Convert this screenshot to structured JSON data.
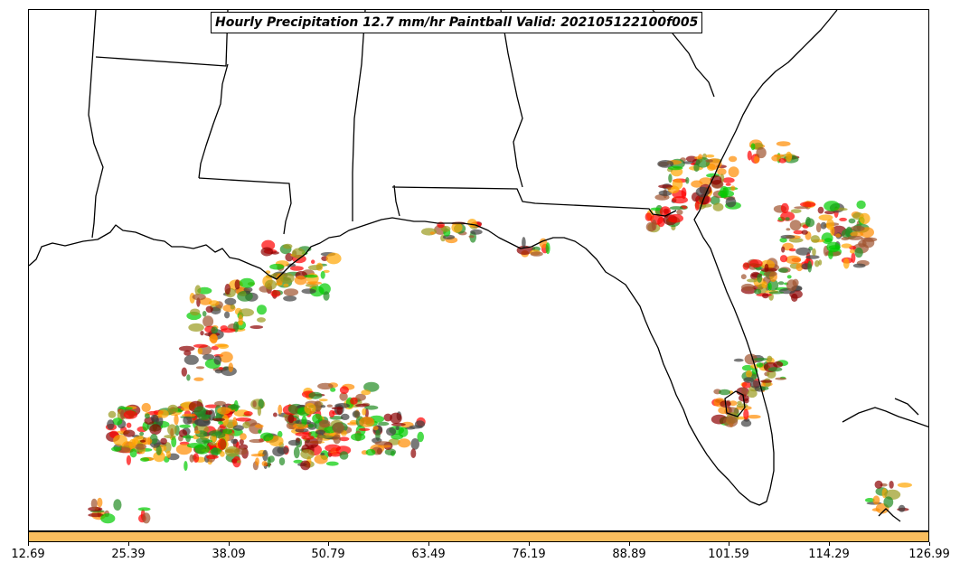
{
  "title": "Hourly Precipitation 12.7 mm/hr Paintball Valid: 202105122100f005",
  "colorbar": {
    "color": "#f9bd5e",
    "ticks": [
      "12.69",
      "25.39",
      "38.09",
      "50.79",
      "63.49",
      "76.19",
      "88.89",
      "101.59",
      "114.29",
      "126.99"
    ]
  },
  "member_colors": [
    "#ff0000",
    "#8b0000",
    "#ff8c00",
    "#ffa500",
    "#00cc00",
    "#228b22",
    "#9a9a1e",
    "#a0522d",
    "#404040"
  ]
}
